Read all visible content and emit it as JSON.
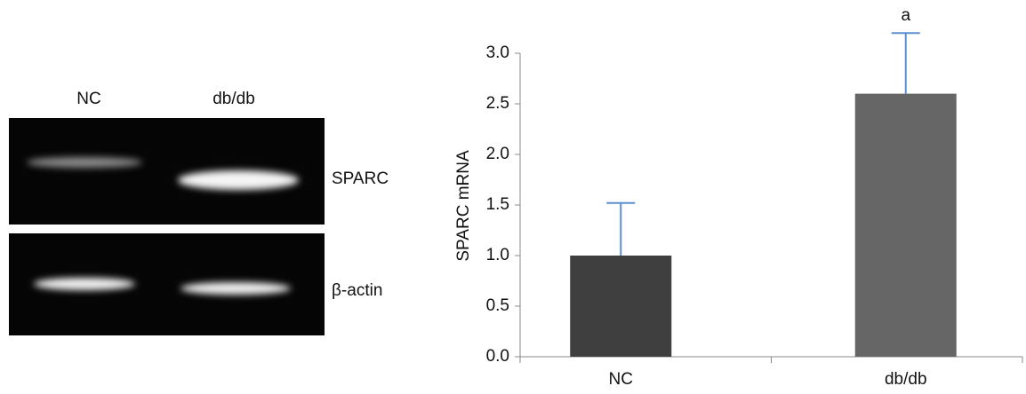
{
  "gel": {
    "lanes": [
      "NC",
      "db/db"
    ],
    "bands": [
      "SPARC",
      "β-actin"
    ]
  },
  "chart_data": {
    "type": "bar",
    "ylabel": "SPARC mRNA",
    "categories": [
      "NC",
      "db/db"
    ],
    "values": [
      1.0,
      2.6
    ],
    "errors": [
      0.52,
      0.6
    ],
    "colors": [
      "#3f3f3f",
      "#666666"
    ],
    "error_color": "#5b8fd0",
    "annotations": [
      {
        "category": 1,
        "text": "a"
      }
    ],
    "ylim": [
      0,
      3
    ],
    "yticks": [
      {
        "value": 0,
        "label": "0.0"
      },
      0.5,
      {
        "value": 1,
        "label": "1.0"
      },
      1.5,
      {
        "value": 2,
        "label": "2.0"
      },
      2.5,
      {
        "value": 3,
        "label": "3.0"
      }
    ]
  }
}
